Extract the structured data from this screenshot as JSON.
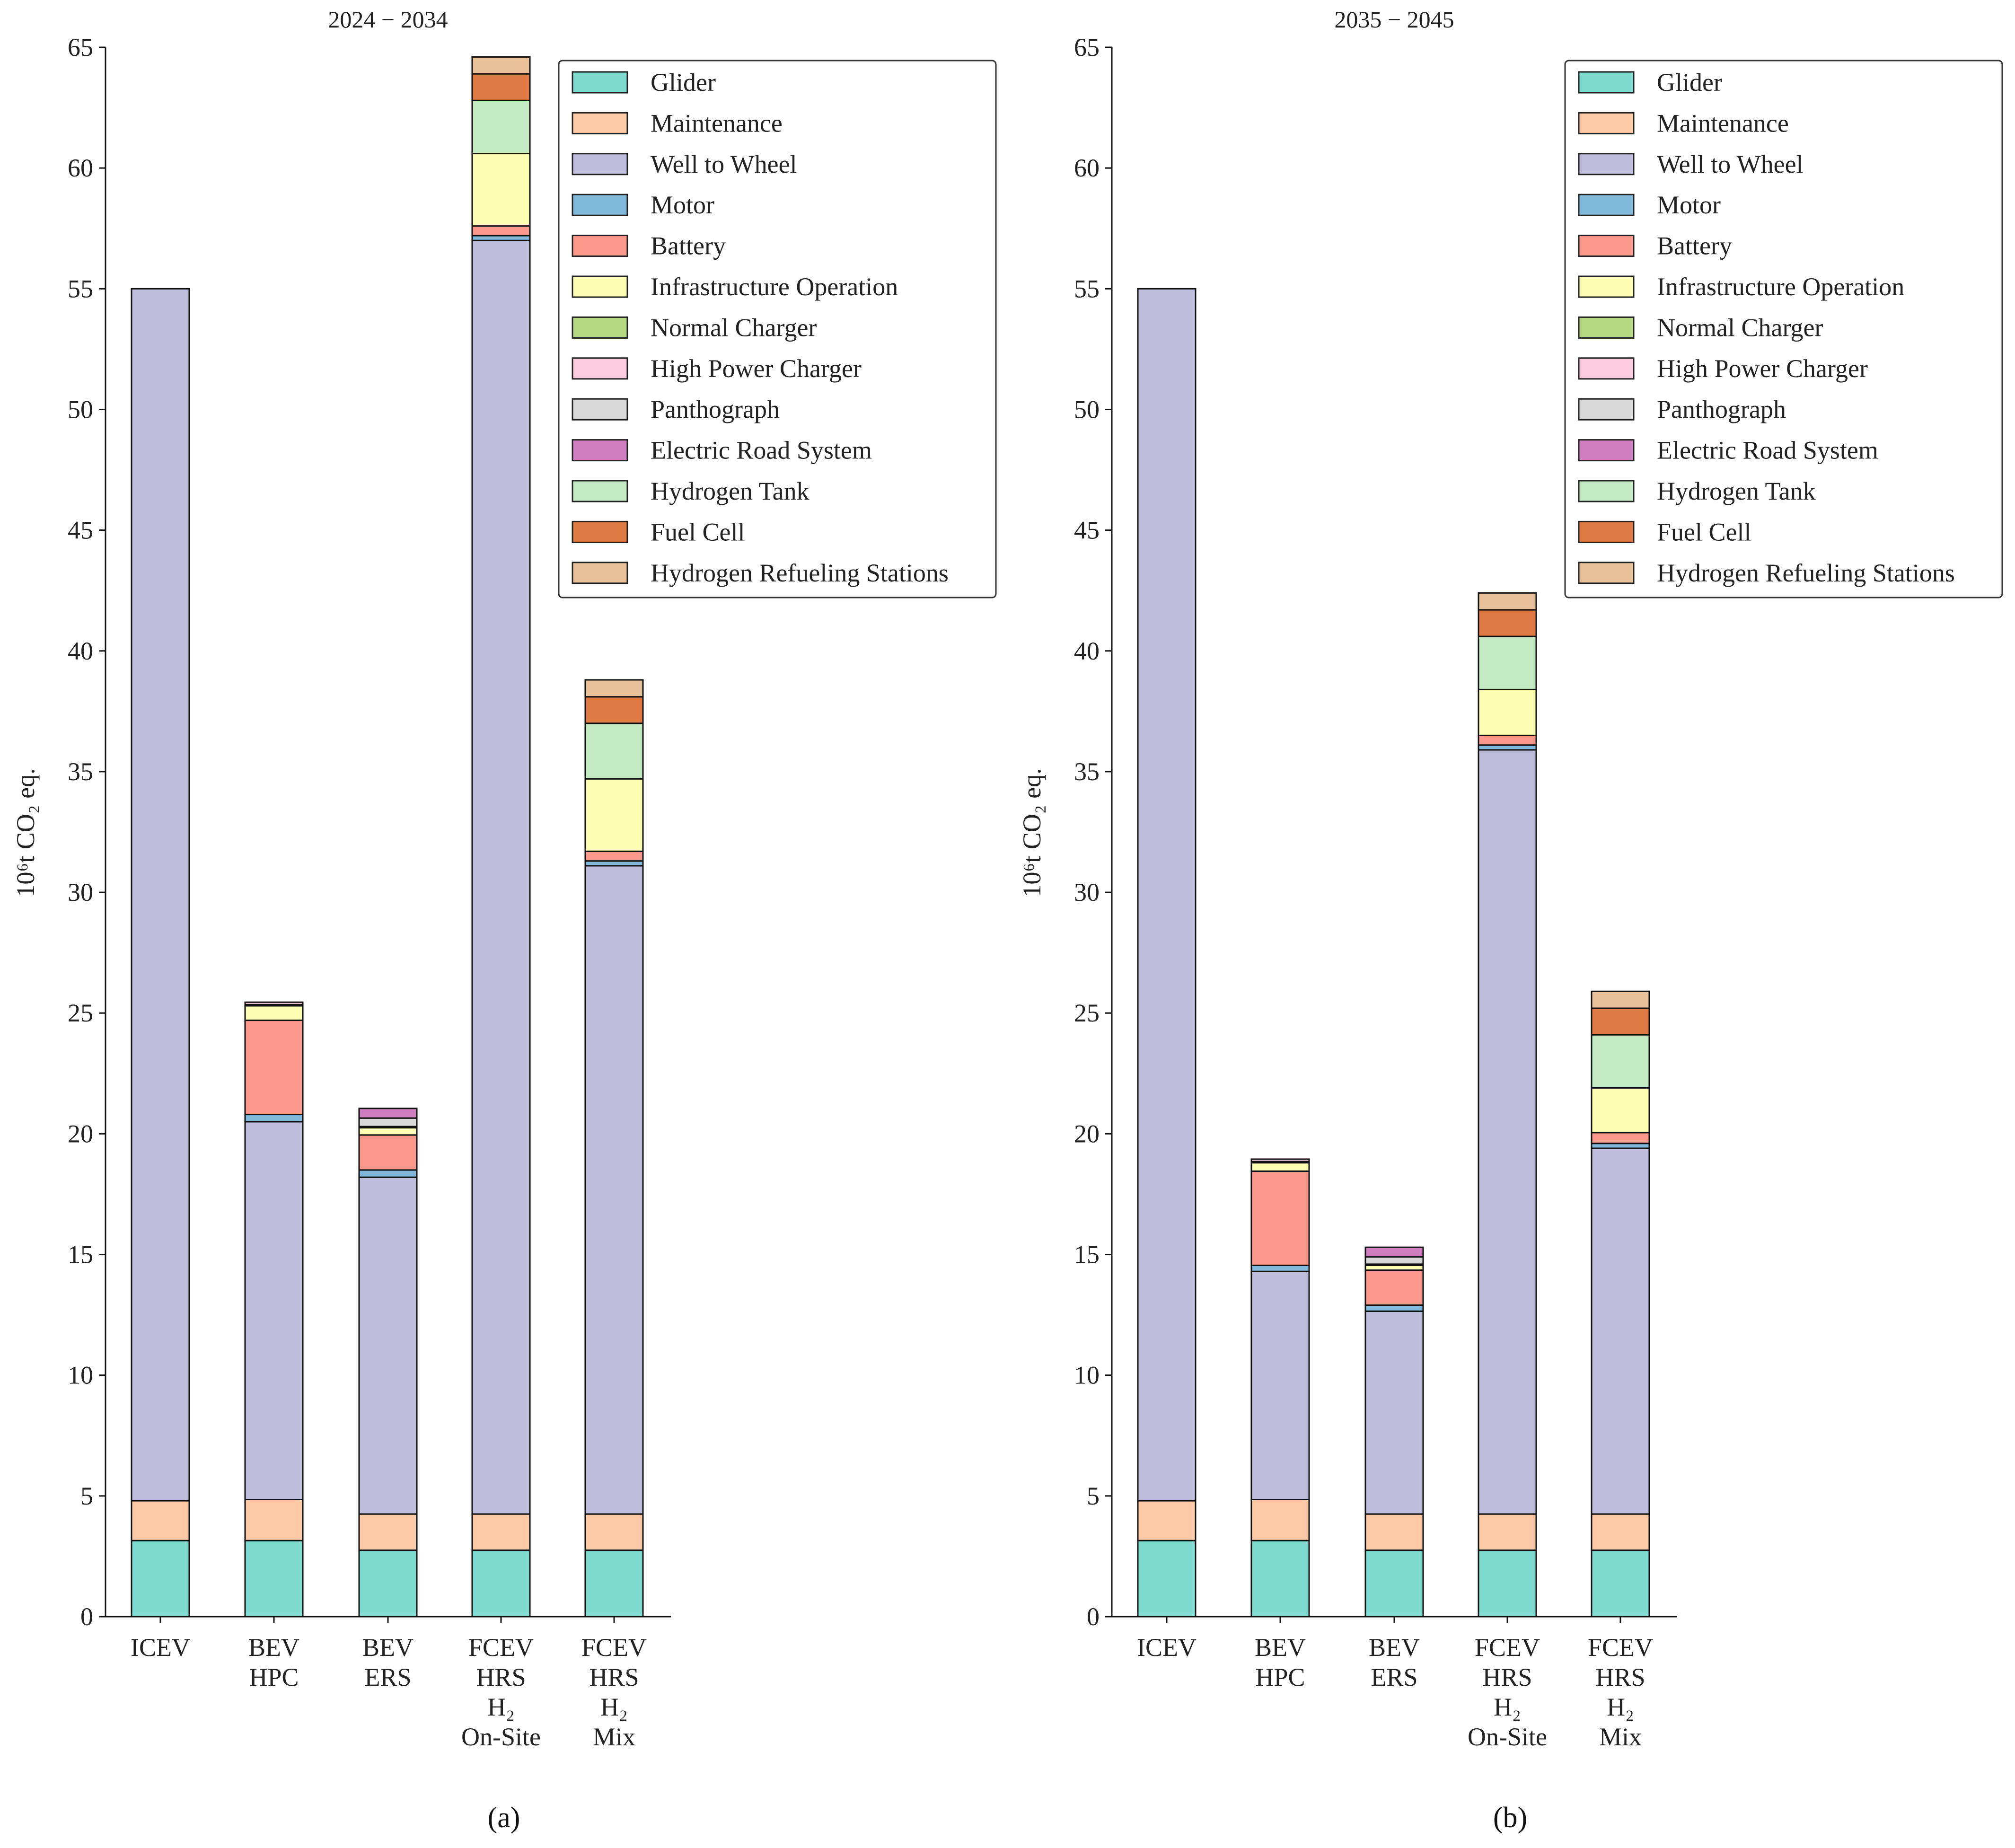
{
  "series": [
    {
      "name": "Glider",
      "color": "#7fdbd0"
    },
    {
      "name": "Maintenance",
      "color": "#fdcaa7"
    },
    {
      "name": "Well to Wheel",
      "color": "#c0bcdc"
    },
    {
      "name": "Motor",
      "color": "#80b8dc"
    },
    {
      "name": "Battery",
      "color": "#fb9a8c"
    },
    {
      "name": "Infrastructure Operation",
      "color": "#fdfdb4"
    },
    {
      "name": "Normal Charger",
      "color": "#b5d983"
    },
    {
      "name": "High Power Charger",
      "color": "#fcccde"
    },
    {
      "name": "Panthograph",
      "color": "#d9d9d9"
    },
    {
      "name": "Electric Road System",
      "color": "#cf7fbf"
    },
    {
      "name": "Hydrogen Tank",
      "color": "#c4eac4"
    },
    {
      "name": "Fuel Cell",
      "color": "#e07a45"
    },
    {
      "name": "Hydrogen Refueling Stations",
      "color": "#e8c19a"
    }
  ],
  "chart_data": [
    {
      "type": "bar",
      "stacked": true,
      "panel_label": "(a)",
      "title": "2024 − 2034",
      "ylabel": "10⁶t CO₂ eq.",
      "xlabel": "",
      "ylim": [
        0,
        65
      ],
      "yticks": [
        0,
        5,
        10,
        15,
        20,
        25,
        30,
        35,
        40,
        45,
        50,
        55,
        60,
        65
      ],
      "legend": "top-right",
      "categories": [
        [
          "ICEV"
        ],
        [
          "BEV",
          "HPC"
        ],
        [
          "BEV",
          "ERS"
        ],
        [
          "FCEV",
          "HRS",
          "H₂",
          "On-Site"
        ],
        [
          "FCEV",
          "HRS",
          "H₂",
          "Mix"
        ]
      ],
      "values": [
        [
          3.15,
          1.65,
          50.2,
          0,
          0,
          0,
          0,
          0,
          0,
          0,
          0,
          0,
          0
        ],
        [
          3.15,
          1.7,
          15.65,
          0.3,
          3.9,
          0.6,
          0.05,
          0.1,
          0,
          0,
          0,
          0,
          0
        ],
        [
          2.75,
          1.5,
          13.95,
          0.3,
          1.45,
          0.3,
          0.05,
          0,
          0.35,
          0.4,
          0,
          0,
          0
        ],
        [
          2.75,
          1.5,
          52.75,
          0.2,
          0.4,
          3.0,
          0,
          0,
          0,
          0,
          2.2,
          1.1,
          0.7
        ],
        [
          2.75,
          1.5,
          26.85,
          0.2,
          0.4,
          3.0,
          0,
          0,
          0,
          0,
          2.3,
          1.1,
          0.7
        ]
      ]
    },
    {
      "type": "bar",
      "stacked": true,
      "panel_label": "(b)",
      "title": "2035 − 2045",
      "ylabel": "10⁶t CO₂ eq.",
      "xlabel": "",
      "ylim": [
        0,
        65
      ],
      "yticks": [
        0,
        5,
        10,
        15,
        20,
        25,
        30,
        35,
        40,
        45,
        50,
        55,
        60,
        65
      ],
      "legend": "top-right",
      "categories": [
        [
          "ICEV"
        ],
        [
          "BEV",
          "HPC"
        ],
        [
          "BEV",
          "ERS"
        ],
        [
          "FCEV",
          "HRS",
          "H₂",
          "On-Site"
        ],
        [
          "FCEV",
          "HRS",
          "H₂",
          "Mix"
        ]
      ],
      "values": [
        [
          3.15,
          1.65,
          50.2,
          0,
          0,
          0,
          0,
          0,
          0,
          0,
          0,
          0,
          0
        ],
        [
          3.15,
          1.7,
          9.45,
          0.25,
          3.9,
          0.35,
          0.05,
          0.1,
          0,
          0,
          0,
          0,
          0
        ],
        [
          2.75,
          1.5,
          8.4,
          0.25,
          1.45,
          0.2,
          0.05,
          0,
          0.3,
          0.4,
          0,
          0,
          0
        ],
        [
          2.75,
          1.5,
          31.65,
          0.2,
          0.4,
          1.9,
          0,
          0,
          0,
          0,
          2.2,
          1.1,
          0.7
        ],
        [
          2.75,
          1.5,
          15.15,
          0.2,
          0.45,
          1.85,
          0,
          0,
          0,
          0,
          2.2,
          1.1,
          0.7
        ]
      ]
    }
  ]
}
